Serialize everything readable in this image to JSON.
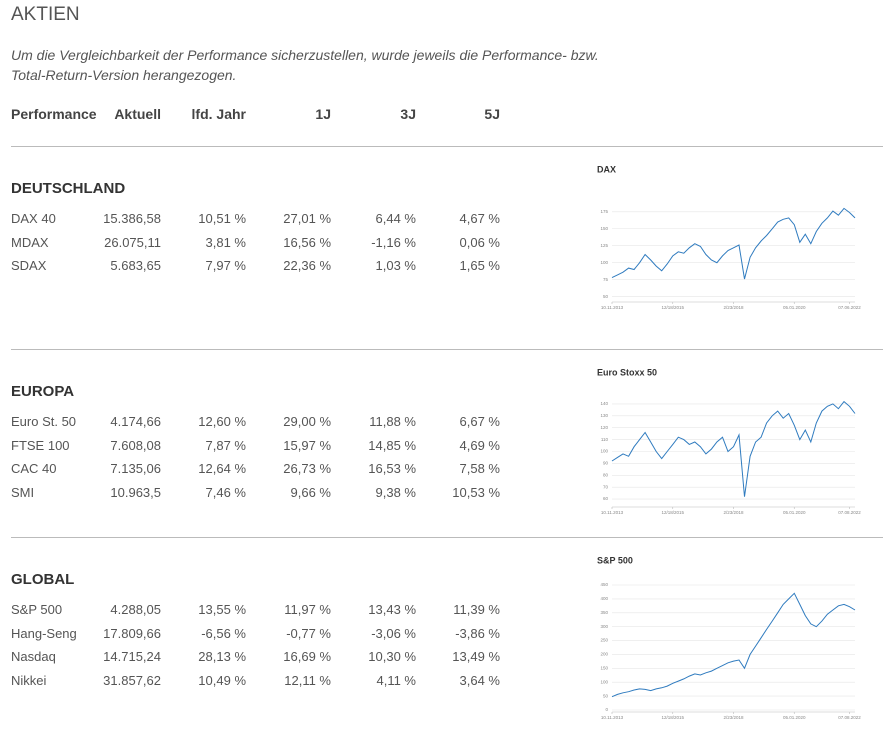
{
  "header": {
    "title": "AKTIEN",
    "note": "Um die Vergleichbarkeit der Performance sicherzustellen, wurde jeweils die Performance- bzw. Total-Return-Version herangezogen."
  },
  "columns": [
    "Performance",
    "Aktuell",
    "lfd. Jahr",
    "1J",
    "3J",
    "5J"
  ],
  "sections": [
    {
      "title": "DEUTSCHLAND",
      "rows": [
        [
          "DAX 40",
          "15.386,58",
          "10,51 %",
          "27,01 %",
          "6,44 %",
          "4,67 %"
        ],
        [
          "MDAX",
          "26.075,11",
          "3,81 %",
          "16,56 %",
          "-1,16 %",
          "0,06 %"
        ],
        [
          "SDAX",
          "5.683,65",
          "7,97 %",
          "22,36 %",
          "1,03 %",
          "1,65 %"
        ]
      ],
      "chart": {
        "type": "line",
        "title": "DAX",
        "color": "#2f7bbf",
        "grid": true,
        "values": [
          78,
          82,
          86,
          92,
          90,
          100,
          112,
          104,
          95,
          88,
          98,
          110,
          116,
          114,
          122,
          128,
          124,
          112,
          104,
          100,
          110,
          118,
          122,
          126,
          76,
          108,
          122,
          132,
          140,
          150,
          160,
          164,
          166,
          156,
          130,
          142,
          128,
          146,
          158,
          166,
          176,
          170,
          180,
          174,
          166
        ],
        "xlim": [
          0,
          44
        ],
        "ylim": [
          45,
          185
        ],
        "yticks": [
          50,
          75,
          100,
          125,
          150,
          175
        ],
        "xticks": [
          {
            "value": 0,
            "label": "10.11.2013"
          },
          {
            "value": 11,
            "label": "12/18/2015"
          },
          {
            "value": 22,
            "label": "2/23/2018"
          },
          {
            "value": 33,
            "label": "05.01.2020"
          },
          {
            "value": 43,
            "label": "07.06.2022"
          }
        ]
      }
    },
    {
      "title": "EUROPA",
      "rows": [
        [
          "Euro St. 50",
          "4.174,66",
          "12,60 %",
          "29,00 %",
          "11,88 %",
          "6,67 %"
        ],
        [
          "FTSE 100",
          "7.608,08",
          "7,87 %",
          "15,97 %",
          "14,85 %",
          "4,69 %"
        ],
        [
          "CAC 40",
          "7.135,06",
          "12,64 %",
          "26,73 %",
          "16,53 %",
          "7,58 %"
        ],
        [
          "SMI",
          "10.963,5",
          "7,46 %",
          "9,66 %",
          "9,38 %",
          "10,53 %"
        ]
      ],
      "chart": {
        "type": "line",
        "title": "Euro Stoxx 50",
        "color": "#2f7bbf",
        "grid": true,
        "values": [
          92,
          95,
          98,
          96,
          104,
          110,
          116,
          108,
          100,
          94,
          100,
          106,
          112,
          110,
          106,
          108,
          104,
          98,
          102,
          108,
          112,
          100,
          104,
          114,
          62,
          96,
          108,
          112,
          124,
          130,
          134,
          128,
          132,
          122,
          110,
          118,
          108,
          124,
          134,
          138,
          140,
          136,
          142,
          138,
          132
        ],
        "xlim": [
          0,
          44
        ],
        "ylim": [
          55,
          145
        ],
        "yticks": [
          60,
          70,
          80,
          90,
          100,
          110,
          120,
          130,
          140
        ],
        "xticks": [
          {
            "value": 0,
            "label": "10.11.2013"
          },
          {
            "value": 11,
            "label": "12/18/2015"
          },
          {
            "value": 22,
            "label": "2/23/2018"
          },
          {
            "value": 33,
            "label": "05.01.2020"
          },
          {
            "value": 43,
            "label": "07.08.2022"
          }
        ]
      }
    },
    {
      "title": "GLOBAL",
      "rows": [
        [
          "S&P 500",
          "4.288,05",
          "13,55 %",
          "11,97 %",
          "13,43 %",
          "11,39 %"
        ],
        [
          "Hang-Seng",
          "17.809,66",
          "-6,56 %",
          "-0,77 %",
          "-3,06 %",
          "-3,86 %"
        ],
        [
          "Nasdaq",
          "14.715,24",
          "28,13 %",
          "16,69 %",
          "10,30 %",
          "13,49 %"
        ],
        [
          "Nikkei",
          "31.857,62",
          "10,49 %",
          "12,11 %",
          "4,11 %",
          "3,64 %"
        ]
      ],
      "chart": {
        "type": "line",
        "title": "S&P 500",
        "color": "#2f7bbf",
        "grid": true,
        "values": [
          48,
          56,
          62,
          66,
          72,
          76,
          74,
          70,
          76,
          80,
          86,
          96,
          104,
          112,
          122,
          130,
          126,
          134,
          140,
          150,
          160,
          170,
          176,
          180,
          150,
          200,
          230,
          260,
          290,
          320,
          350,
          380,
          400,
          420,
          380,
          340,
          310,
          300,
          320,
          345,
          360,
          375,
          380,
          372,
          360
        ],
        "xlim": [
          0,
          44
        ],
        "ylim": [
          0,
          450
        ],
        "yticks": [
          0,
          50,
          100,
          150,
          200,
          250,
          300,
          350,
          400,
          450
        ],
        "xticks": [
          {
            "value": 0,
            "label": "10.11.2013"
          },
          {
            "value": 11,
            "label": "12/18/2015"
          },
          {
            "value": 22,
            "label": "2/23/2018"
          },
          {
            "value": 33,
            "label": "05.01.2020"
          },
          {
            "value": 43,
            "label": "07.08.2022"
          }
        ]
      }
    }
  ]
}
